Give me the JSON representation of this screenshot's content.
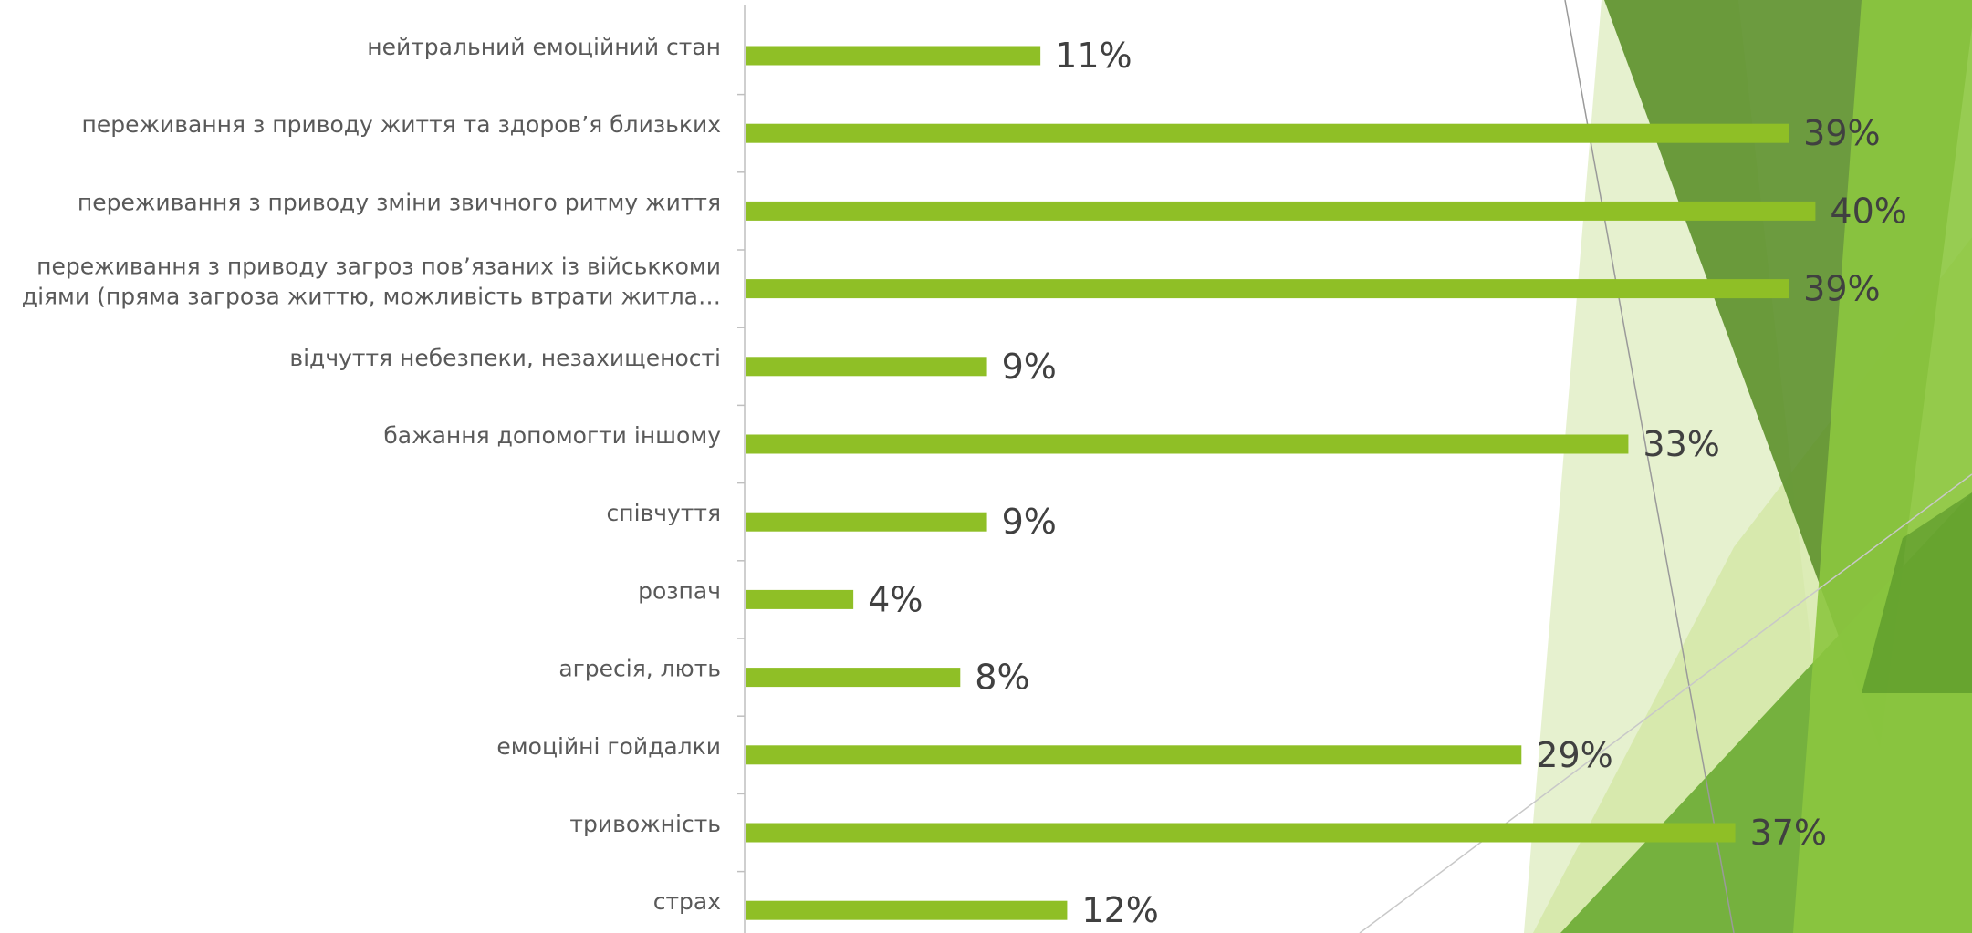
{
  "colors": {
    "bar": "#8fbf26",
    "axis": "#bfbfbf",
    "label_text": "#595959",
    "value_text": "#404040",
    "deco_dark": "#5a8f2c",
    "deco_mid": "#6fae2f",
    "deco_light": "#cfe4a3",
    "deco_lime": "#8cc63f"
  },
  "chart_data": {
    "type": "bar",
    "orientation": "horizontal",
    "value_format": "percent",
    "xlim": [
      0,
      42
    ],
    "grid": false,
    "categories": [
      "нейтральний емоційний стан",
      "переживання з приводу життя та здоров’я близьких",
      "переживання з приводу зміни звичного ритму життя",
      "переживання з приводу загроз пов’язаних із військкоми діями (пряма загроза життю, можливість втрати житла…",
      "відчуття небезпеки, незахищеності",
      "бажання допомогти іншому",
      "співчуття",
      "розпач",
      "агресія, лють",
      "емоційні гойдалки",
      "тривожність",
      "страх"
    ],
    "category_lines": [
      [
        "нейтральний емоційний стан"
      ],
      [
        "переживання з приводу життя та здоров’я близьких"
      ],
      [
        "переживання з приводу зміни звичного ритму життя"
      ],
      [
        "переживання з приводу загроз пов’язаних із військкоми",
        "діями (пряма загроза життю, можливість втрати житла…"
      ],
      [
        "відчуття небезпеки, незахищеності"
      ],
      [
        "бажання допомогти іншому"
      ],
      [
        "співчуття"
      ],
      [
        "розпач"
      ],
      [
        "агресія, лють"
      ],
      [
        "емоційні гойдалки"
      ],
      [
        "тривожність"
      ],
      [
        "страх"
      ]
    ],
    "values": [
      11,
      39,
      40,
      39,
      9,
      33,
      9,
      4,
      8,
      29,
      37,
      12
    ],
    "value_labels": [
      "11%",
      "39%",
      "40%",
      "39%",
      "9%",
      "33%",
      "9%",
      "4%",
      "8%",
      "29%",
      "37%",
      "12%"
    ]
  }
}
